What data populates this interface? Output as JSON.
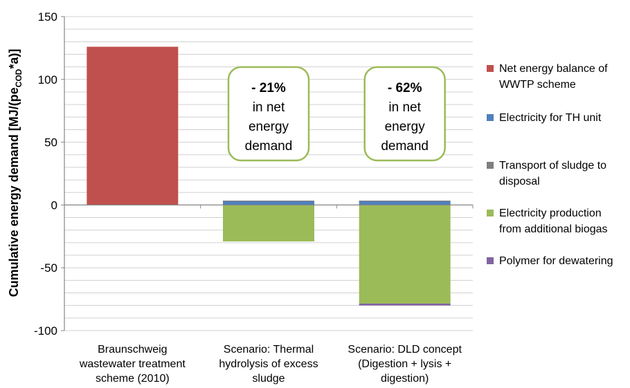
{
  "chart_data": {
    "type": "bar",
    "stacked": true,
    "ylabel": "Cumulative energy demand [MJ/(pe",
    "ylabel_subscript": "COD",
    "ylabel_suffix": "*a)]",
    "ylim": [
      -100,
      150
    ],
    "yticks": [
      150,
      100,
      50,
      0,
      -50,
      -100
    ],
    "grid": true,
    "legend_position": "right",
    "categories": [
      [
        "Braunschweig",
        "wastewater treatment",
        "scheme (2010)"
      ],
      [
        "Scenario: Thermal",
        "hydrolysis of excess",
        "sludge"
      ],
      [
        "Scenario: DLD concept",
        "(Digestion + lysis +",
        "digestion)"
      ]
    ],
    "series": [
      {
        "name": [
          "Net energy balance of",
          "WWTP scheme"
        ],
        "color": "#c0504d",
        "values": [
          126,
          0,
          0
        ]
      },
      {
        "name": [
          "Electricity for TH unit"
        ],
        "color": "#4f81bd",
        "values": [
          0,
          3,
          3
        ]
      },
      {
        "name": [
          "Transport of sludge to",
          "disposal"
        ],
        "color": "#7f7f7f",
        "values": [
          0,
          0.5,
          0.5
        ]
      },
      {
        "name": [
          "Electricity production",
          "from additional biogas"
        ],
        "color": "#9bbb59",
        "values": [
          0,
          -29,
          -78.5
        ]
      },
      {
        "name": [
          "Polymer for dewatering"
        ],
        "color": "#8064a2",
        "values": [
          0,
          0,
          -1.5
        ]
      }
    ],
    "annotations": [
      {
        "category": 1,
        "lines": [
          "- 21%",
          "in net",
          "energy",
          "demand"
        ]
      },
      {
        "category": 2,
        "lines": [
          "- 62%",
          "in net",
          "energy",
          "demand"
        ]
      }
    ]
  }
}
